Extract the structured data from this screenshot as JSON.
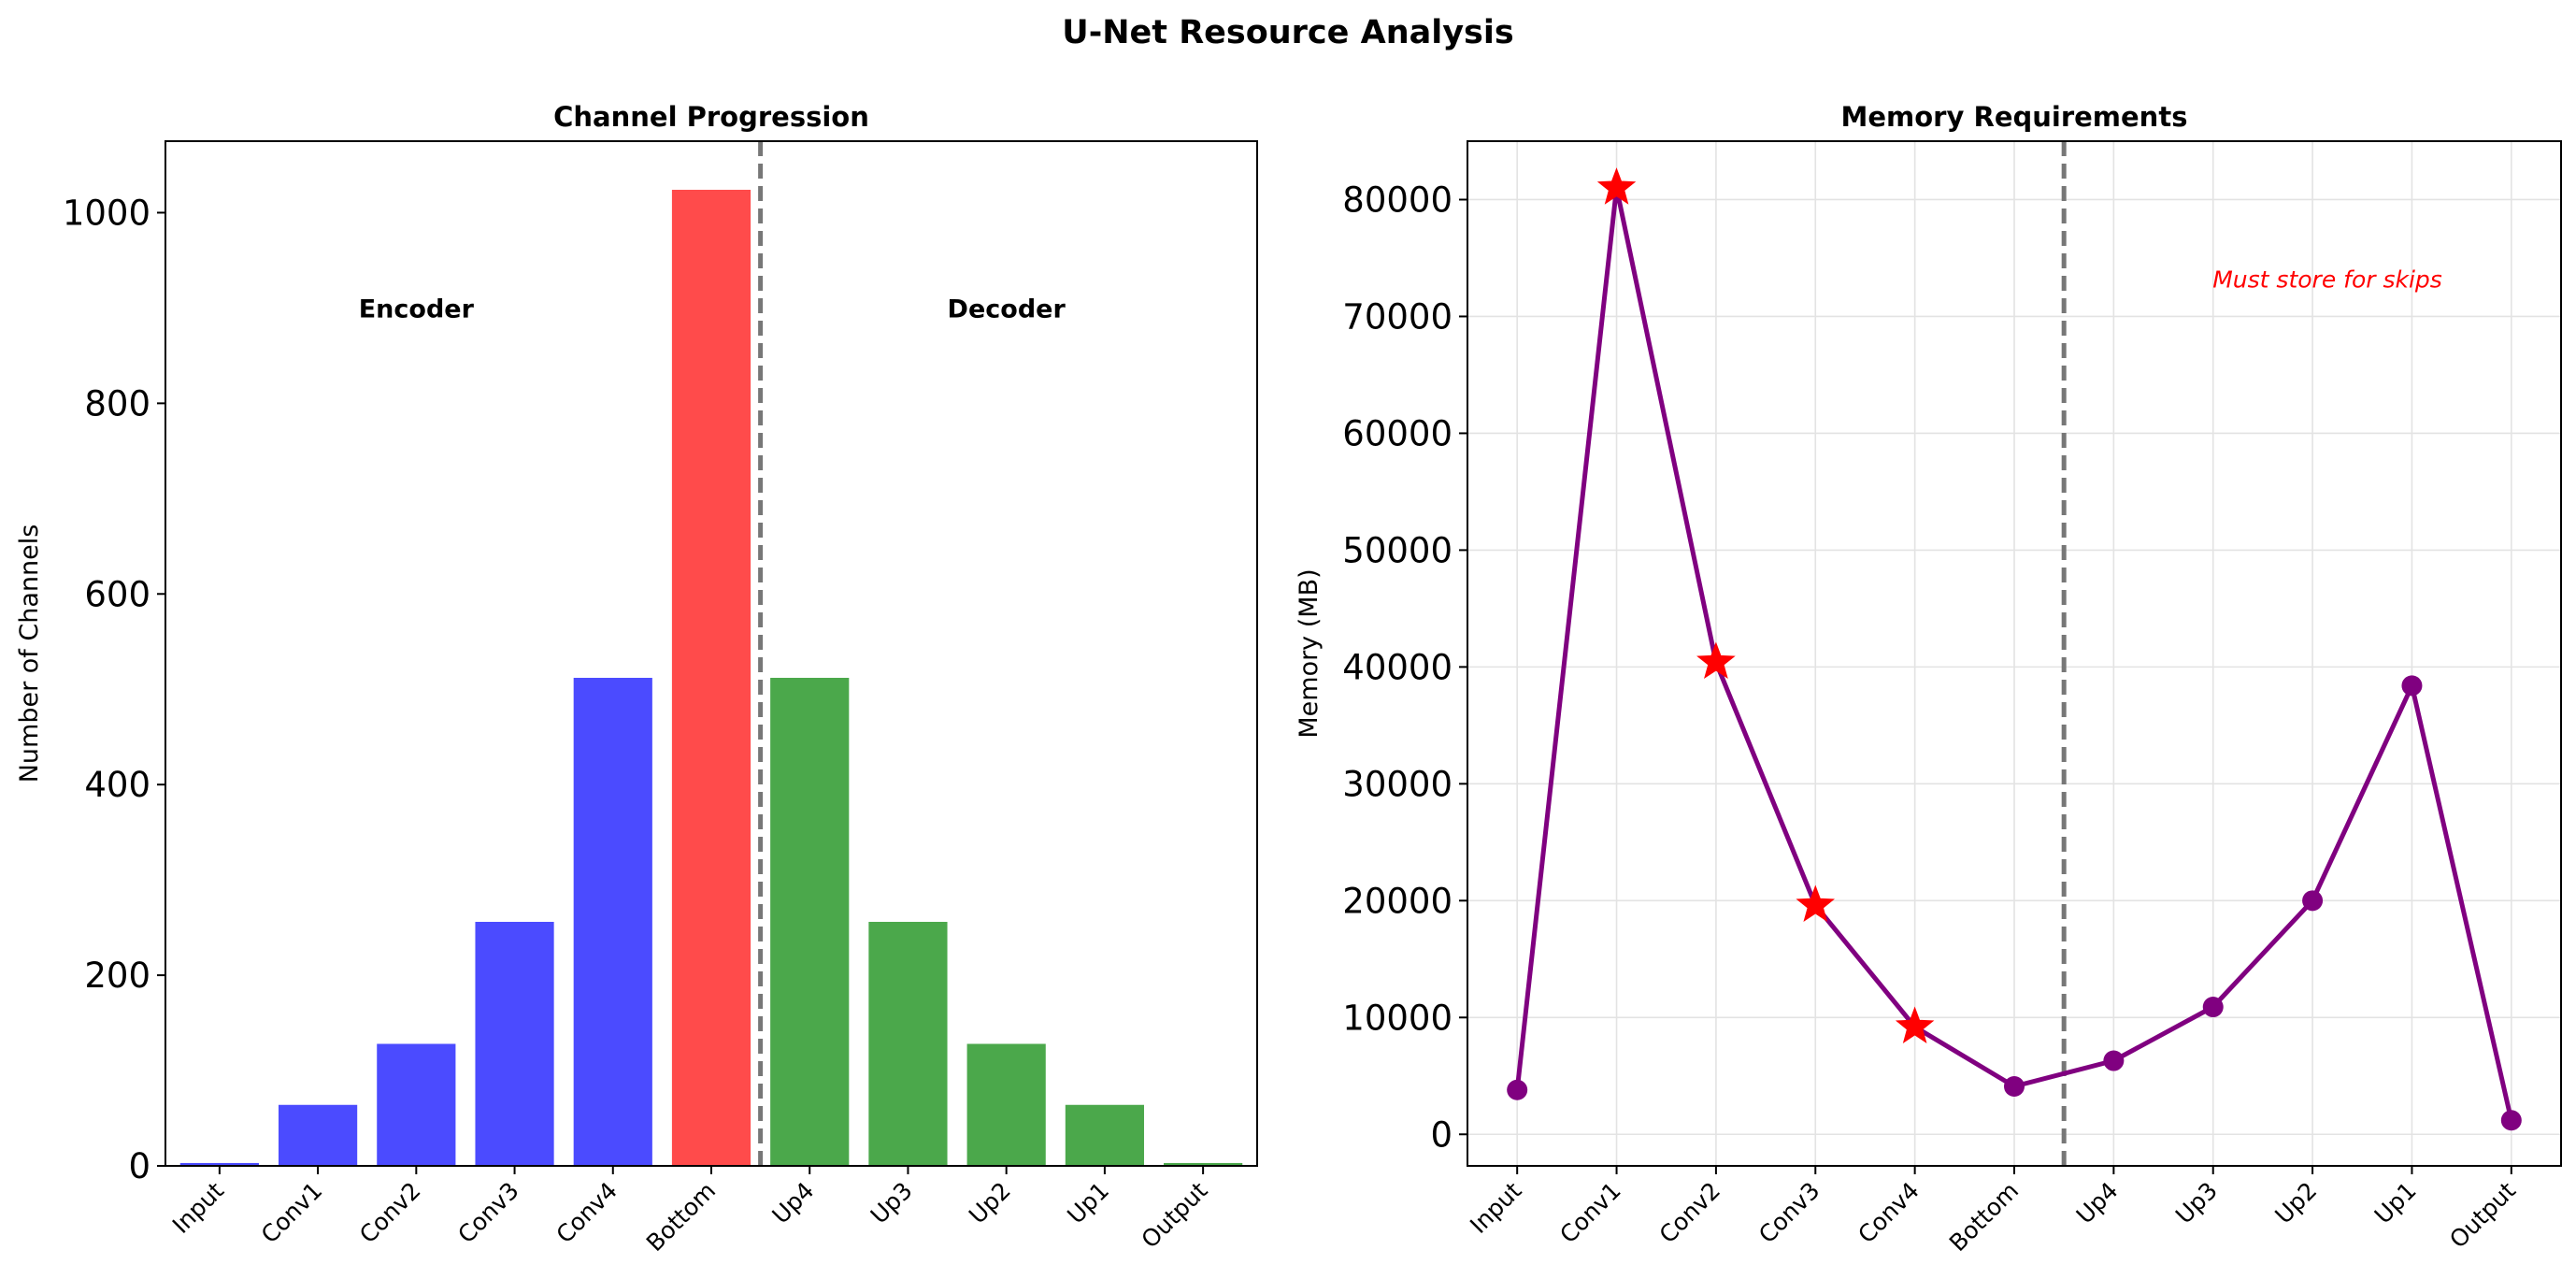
{
  "figure_title": "U-Net Resource Analysis",
  "chart_data": [
    {
      "type": "bar",
      "title": "Channel Progression",
      "xlabel": "",
      "ylabel": "Number of Channels",
      "categories": [
        "Input",
        "Conv1",
        "Conv2",
        "Conv3",
        "Conv4",
        "Bottom",
        "Up4",
        "Up3",
        "Up2",
        "Up1",
        "Output"
      ],
      "values": [
        3,
        64,
        128,
        256,
        512,
        1024,
        512,
        256,
        128,
        64,
        3
      ],
      "bar_colors": [
        "#4b4bff",
        "#4b4bff",
        "#4b4bff",
        "#4b4bff",
        "#4b4bff",
        "#ff4b4b",
        "#4ba84b",
        "#4ba84b",
        "#4ba84b",
        "#4ba84b",
        "#4ba84b"
      ],
      "ylim": [
        0,
        1075
      ],
      "yticks": [
        0,
        200,
        400,
        600,
        800,
        1000
      ],
      "divider_x": 5.5,
      "annotations": [
        {
          "text": "Encoder",
          "x": 2,
          "y": 900
        },
        {
          "text": "Decoder",
          "x": 8,
          "y": 900
        }
      ],
      "grid": false
    },
    {
      "type": "line",
      "title": "Memory Requirements",
      "xlabel": "",
      "ylabel": "Memory (MB)",
      "categories": [
        "Input",
        "Conv1",
        "Conv2",
        "Conv3",
        "Conv4",
        "Bottom",
        "Up4",
        "Up3",
        "Up2",
        "Up1",
        "Output"
      ],
      "values": [
        3800,
        81000,
        40400,
        19600,
        9200,
        4100,
        6300,
        10900,
        20000,
        38400,
        1200
      ],
      "skip_markers": [
        1,
        2,
        3,
        4
      ],
      "line_color": "#800080",
      "skip_color": "#ff0000",
      "ylim": [
        -2700,
        85000
      ],
      "yticks": [
        0,
        10000,
        20000,
        30000,
        40000,
        50000,
        60000,
        70000,
        80000
      ],
      "divider_x": 5.5,
      "annotations": [
        {
          "text": "Must store for skips",
          "x": 8.15,
          "y": 73200
        }
      ],
      "grid": true
    }
  ]
}
